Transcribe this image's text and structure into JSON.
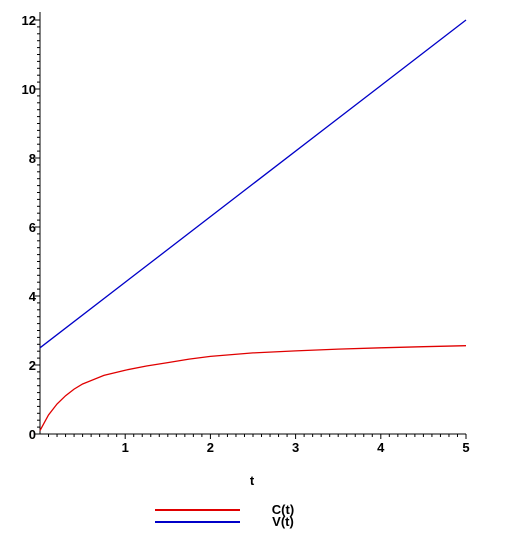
{
  "chart_data": {
    "type": "line",
    "title": "",
    "xlabel": "t",
    "ylabel": "",
    "xlim": [
      0,
      5
    ],
    "ylim": [
      0,
      12
    ],
    "x_ticks": [
      "1",
      "2",
      "3",
      "4",
      "5"
    ],
    "y_ticks": [
      "0",
      "2",
      "4",
      "6",
      "8",
      "10",
      "12"
    ],
    "grid": false,
    "legend_position": "bottom",
    "series": [
      {
        "name": "C(t)",
        "color": "#e00000",
        "x": [
          0,
          0.1,
          0.2,
          0.3,
          0.4,
          0.5,
          0.75,
          1,
          1.25,
          1.5,
          1.75,
          2,
          2.5,
          3,
          3.5,
          4,
          4.5,
          5
        ],
        "y": [
          0.1,
          0.55,
          0.87,
          1.11,
          1.3,
          1.45,
          1.7,
          1.85,
          1.97,
          2.07,
          2.17,
          2.25,
          2.35,
          2.41,
          2.46,
          2.5,
          2.53,
          2.56
        ]
      },
      {
        "name": "V(t)",
        "color": "#0000c8",
        "x": [
          0,
          5
        ],
        "y": [
          2.5,
          12
        ]
      }
    ]
  }
}
